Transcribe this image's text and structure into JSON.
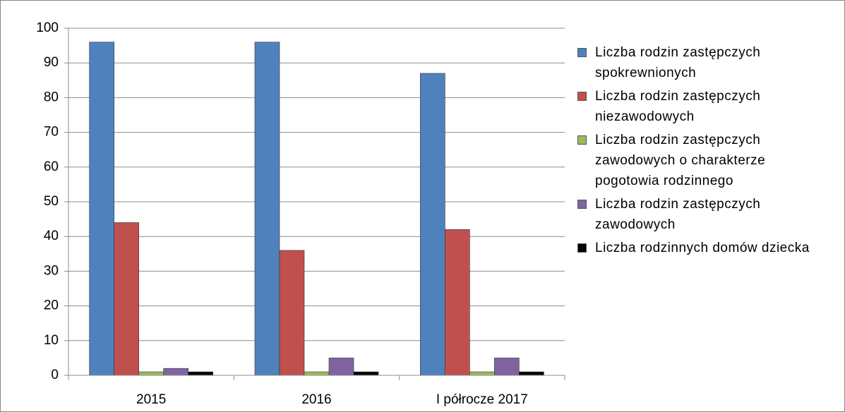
{
  "chart_data": {
    "type": "bar",
    "categories": [
      "2015",
      "2016",
      "I półrocze 2017"
    ],
    "series": [
      {
        "name": "Liczba rodzin zastępczych spokrewnionych",
        "color": "#4f81bd",
        "values": [
          96,
          96,
          87
        ]
      },
      {
        "name": "Liczba rodzin zastępczych niezawodowych",
        "color": "#c0504d",
        "values": [
          44,
          36,
          42
        ]
      },
      {
        "name": "Liczba rodzin zastępczych zawodowych o charakterze pogotowia rodzinnego",
        "color": "#9bbb59",
        "values": [
          1,
          1,
          1
        ]
      },
      {
        "name": "Liczba rodzin zastępczych zawodowych",
        "color": "#8064a2",
        "values": [
          2,
          5,
          5
        ]
      },
      {
        "name": "Liczba rodzinnych domów dziecka",
        "color": "#000000",
        "values": [
          1,
          1,
          1
        ]
      }
    ],
    "ylim": [
      0,
      100
    ],
    "yticks": [
      0,
      10,
      20,
      30,
      40,
      50,
      60,
      70,
      80,
      90,
      100
    ],
    "grid": true,
    "legend": "right"
  }
}
